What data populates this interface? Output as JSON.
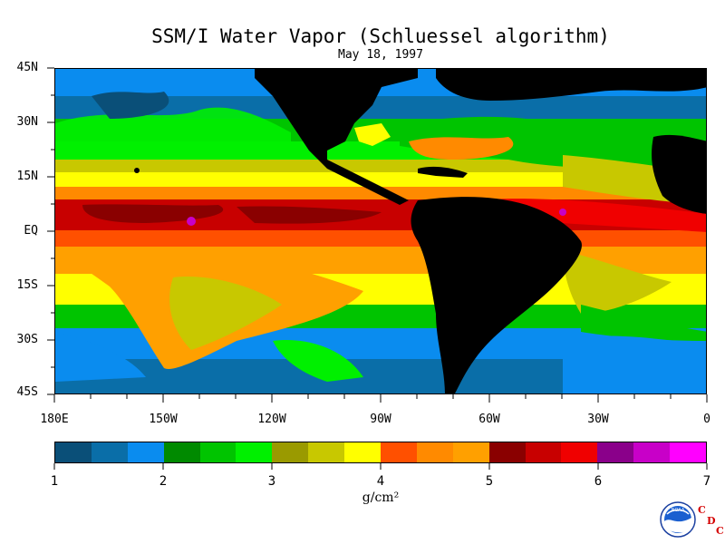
{
  "title": "SSM/I Water Vapor (Schluessel algorithm)",
  "subtitle": "May 18, 1997",
  "y_axis_labels": [
    "45N",
    "30N",
    "15N",
    "EQ",
    "15S",
    "30S",
    "45S"
  ],
  "x_axis_labels": [
    "180E",
    "150W",
    "120W",
    "90W",
    "60W",
    "30W",
    "0"
  ],
  "colorbar": {
    "tick_labels": [
      "1",
      "2",
      "3",
      "4",
      "5",
      "6",
      "7"
    ],
    "units": "g/cm²",
    "colors": [
      "#0a4f78",
      "#0a6ea8",
      "#0a8cef",
      "#008a00",
      "#00c400",
      "#00f000",
      "#9a9a00",
      "#c8c800",
      "#ffff00",
      "#ff5000",
      "#ff8a00",
      "#ffa000",
      "#8a0000",
      "#c80000",
      "#f00000",
      "#8a008a",
      "#c800c8",
      "#ff00ff"
    ]
  },
  "logo": {
    "text": "NOAA",
    "letters": [
      "C",
      "D",
      "C"
    ]
  },
  "map_colors": {
    "land": "#000000"
  }
}
